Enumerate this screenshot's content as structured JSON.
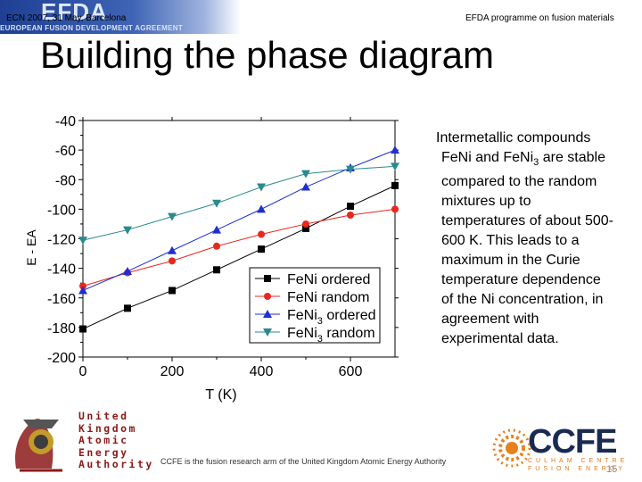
{
  "header": {
    "banner_logo": "EFDA",
    "banner_subtitle": "EUROPEAN FUSION DEVELOPMENT AGREEMENT",
    "conference": "ECN 2007, 31 May, Barcelona",
    "programme": "EFDA programme on fusion materials"
  },
  "slide": {
    "title": "Building the phase diagram",
    "body_lines": [
      "Intermetallic compounds",
      "FeNi and FeNi3 are stable",
      "compared to the random",
      "mixtures up to",
      "temperatures of about 500-",
      "600 K. This leads to a",
      "maximum in the Curie",
      "temperature dependence",
      "of the Ni concentration, in",
      "agreement with",
      "experimental data."
    ]
  },
  "footer": {
    "ukaea_lines": [
      "United",
      "Kingdom",
      "Atomic",
      "Energy",
      "Authority"
    ],
    "ccfe_text": "CCFE is the fusion research arm of the United Kingdom Atomic Energy Authority",
    "ccfe_logo": "CCFE",
    "ccfe_sub1": "CULHAM CENTRE",
    "ccfe_sub2": "FUSION ENERGY",
    "page_number": "15"
  },
  "chart_data": {
    "type": "line",
    "xlabel": "T (K)",
    "ylabel": "E - EA",
    "xlim": [
      0,
      700
    ],
    "ylim": [
      -200,
      -40
    ],
    "xticks": [
      0,
      200,
      400,
      600
    ],
    "yticks": [
      -200,
      -180,
      -160,
      -140,
      -120,
      -100,
      -80,
      -60,
      -40
    ],
    "legend_position": "bottom-right",
    "series": [
      {
        "name": "FeNi ordered",
        "color": "#000000",
        "marker": "square",
        "x": [
          0,
          100,
          200,
          300,
          400,
          500,
          600,
          700
        ],
        "y": [
          -181,
          -167,
          -155,
          -141,
          -127,
          -113,
          -98,
          -84
        ]
      },
      {
        "name": "FeNi random",
        "color": "#e8281e",
        "marker": "circle",
        "x": [
          0,
          100,
          200,
          300,
          400,
          500,
          600,
          700
        ],
        "y": [
          -152,
          -143,
          -135,
          -125,
          -117,
          -110,
          -104,
          -100
        ]
      },
      {
        "name": "FeNi3 ordered",
        "color": "#1e2fd0",
        "marker": "triangle-up",
        "x": [
          0,
          100,
          200,
          300,
          400,
          500,
          600,
          700
        ],
        "y": [
          -155,
          -142,
          -128,
          -114,
          -100,
          -85,
          -72,
          -60
        ]
      },
      {
        "name": "FeNi3 random",
        "color": "#2a8a8e",
        "marker": "triangle-down",
        "x": [
          0,
          100,
          200,
          300,
          400,
          500,
          600,
          700
        ],
        "y": [
          -121,
          -114,
          -105,
          -96,
          -85,
          -76,
          -73,
          -71
        ]
      }
    ]
  }
}
